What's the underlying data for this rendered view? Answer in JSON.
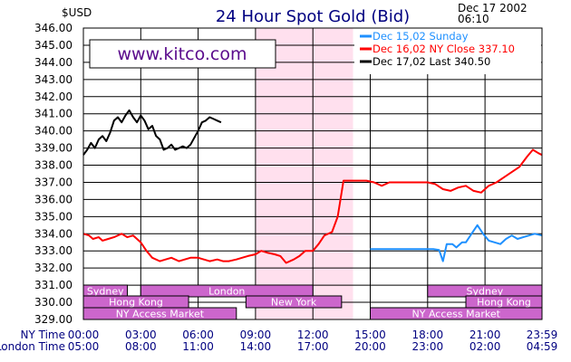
{
  "chart_data": {
    "type": "line",
    "title": "24 Hour Spot Gold (Bid)",
    "unit_label": "$USD",
    "timestamp": [
      "Dec 17 2002",
      "06:10"
    ],
    "watermark": "www.kitco.com",
    "ylim": [
      329.0,
      346.0
    ],
    "y_ticks": [
      "346.00",
      "345.00",
      "344.00",
      "343.00",
      "342.00",
      "341.00",
      "340.00",
      "339.00",
      "338.00",
      "337.00",
      "336.00",
      "335.00",
      "334.00",
      "333.00",
      "332.00",
      "331.00",
      "330.00",
      "329.00"
    ],
    "x_rows": [
      {
        "label": "NY Time",
        "ticks": [
          "00:00",
          "03:00",
          "06:00",
          "09:00",
          "12:00",
          "15:00",
          "18:00",
          "21:00",
          "23:59"
        ]
      },
      {
        "label": "London Time",
        "ticks": [
          "05:00",
          "08:00",
          "11:00",
          "14:00",
          "17:00",
          "20:00",
          "23:00",
          "02:00",
          "04:59"
        ]
      }
    ],
    "legend": [
      {
        "label": "Dec  15,02        Sunday",
        "color": "#1e90ff"
      },
      {
        "label": "Dec  16,02  NY  Close  337.10",
        "color": "#ff0000"
      },
      {
        "label": "Dec  17,02  Last  340.50",
        "color": "#000000"
      }
    ],
    "series": [
      {
        "name": "Dec 15,02",
        "color": "#1e90ff",
        "x": [
          15.0,
          15.5,
          16.0,
          16.5,
          17.0,
          17.5,
          18.0,
          18.3,
          18.6,
          18.8,
          19.0,
          19.3,
          19.5,
          19.8,
          20.0,
          20.3,
          20.6,
          20.9,
          21.2,
          21.5,
          21.8,
          22.1,
          22.4,
          22.7,
          23.0,
          23.3,
          23.6,
          23.98
        ],
        "y": [
          333.1,
          333.1,
          333.1,
          333.1,
          333.1,
          333.1,
          333.1,
          333.1,
          333.05,
          332.4,
          333.4,
          333.4,
          333.2,
          333.5,
          333.5,
          334.0,
          334.5,
          334.0,
          333.6,
          333.5,
          333.4,
          333.7,
          333.9,
          333.7,
          333.8,
          333.9,
          334.0,
          333.9
        ]
      },
      {
        "name": "Dec 16,02",
        "color": "#ff0000",
        "x": [
          0.0,
          0.3,
          0.5,
          0.8,
          1.0,
          1.3,
          1.6,
          2.0,
          2.3,
          2.6,
          3.0,
          3.3,
          3.6,
          4.0,
          4.3,
          4.6,
          5.0,
          5.3,
          5.6,
          6.0,
          6.3,
          6.6,
          7.0,
          7.3,
          7.6,
          8.0,
          8.3,
          8.6,
          9.0,
          9.3,
          9.6,
          10.0,
          10.3,
          10.6,
          11.0,
          11.3,
          11.6,
          12.0,
          12.3,
          12.6,
          13.0,
          13.3,
          13.6,
          14.0,
          14.4,
          14.8,
          15.2,
          15.6,
          16.0,
          16.4,
          16.8,
          17.2,
          17.6,
          18.0,
          18.4,
          18.8,
          19.2,
          19.6,
          20.0,
          20.4,
          20.8,
          21.2,
          21.6,
          22.0,
          22.4,
          22.8,
          23.2,
          23.5,
          23.8,
          23.98
        ],
        "y": [
          334.0,
          333.9,
          333.7,
          333.8,
          333.6,
          333.7,
          333.8,
          334.0,
          333.8,
          333.9,
          333.5,
          333.0,
          332.6,
          332.4,
          332.5,
          332.6,
          332.4,
          332.5,
          332.6,
          332.6,
          332.5,
          332.4,
          332.5,
          332.4,
          332.4,
          332.5,
          332.6,
          332.7,
          332.8,
          333.0,
          332.9,
          332.8,
          332.7,
          332.3,
          332.5,
          332.7,
          333.0,
          333.0,
          333.4,
          333.9,
          334.1,
          335.0,
          337.1,
          337.1,
          337.1,
          337.1,
          337.0,
          336.8,
          337.0,
          337.0,
          337.0,
          337.0,
          337.0,
          337.0,
          336.9,
          336.6,
          336.5,
          336.7,
          336.8,
          336.5,
          336.4,
          336.8,
          337.0,
          337.3,
          337.6,
          337.9,
          338.5,
          338.9,
          338.7,
          338.6
        ]
      },
      {
        "name": "Dec 17,02",
        "color": "#000000",
        "x": [
          0.0,
          0.2,
          0.4,
          0.6,
          0.8,
          1.0,
          1.2,
          1.4,
          1.6,
          1.8,
          2.0,
          2.2,
          2.4,
          2.6,
          2.8,
          3.0,
          3.2,
          3.4,
          3.6,
          3.8,
          4.0,
          4.2,
          4.4,
          4.6,
          4.8,
          5.0,
          5.2,
          5.4,
          5.6,
          5.8,
          6.0,
          6.2,
          6.4,
          6.6,
          6.8,
          7.0,
          7.2
        ],
        "y": [
          338.6,
          338.9,
          339.3,
          339.0,
          339.5,
          339.7,
          339.4,
          339.9,
          340.6,
          340.8,
          340.5,
          340.9,
          341.2,
          340.8,
          340.5,
          340.9,
          340.6,
          340.1,
          340.3,
          339.7,
          339.5,
          338.9,
          339.0,
          339.2,
          338.9,
          339.0,
          339.1,
          339.0,
          339.2,
          339.6,
          340.0,
          340.5,
          340.6,
          340.8,
          340.7,
          340.6,
          340.5
        ]
      }
    ],
    "shaded_region": {
      "x_start": 9.0,
      "x_end": 14.1,
      "color": "#ffe0ee"
    },
    "market_rows": [
      {
        "row": 1,
        "blocks": [
          {
            "label": "Sydney",
            "x_start": 0.0,
            "x_end": 2.3
          },
          {
            "label": "London",
            "x_start": 3.0,
            "x_end": 12.0
          },
          {
            "label": "Sydney",
            "x_start": 18.0,
            "x_end": 23.98
          }
        ]
      },
      {
        "row": 2,
        "blocks": [
          {
            "label": "Hong  Kong",
            "x_start": 0.0,
            "x_end": 5.5
          },
          {
            "label": "New  York",
            "x_start": 8.5,
            "x_end": 13.5
          },
          {
            "label": "Hong  Kong",
            "x_start": 20.0,
            "x_end": 23.98
          }
        ]
      },
      {
        "row": 3,
        "blocks": [
          {
            "label": "NY  Access  Market",
            "x_start": 0.0,
            "x_end": 8.0
          },
          {
            "label": "NY  Access  Market",
            "x_start": 15.0,
            "x_end": 23.98
          }
        ]
      }
    ],
    "market_color": "#cc66cc",
    "grid": true
  }
}
